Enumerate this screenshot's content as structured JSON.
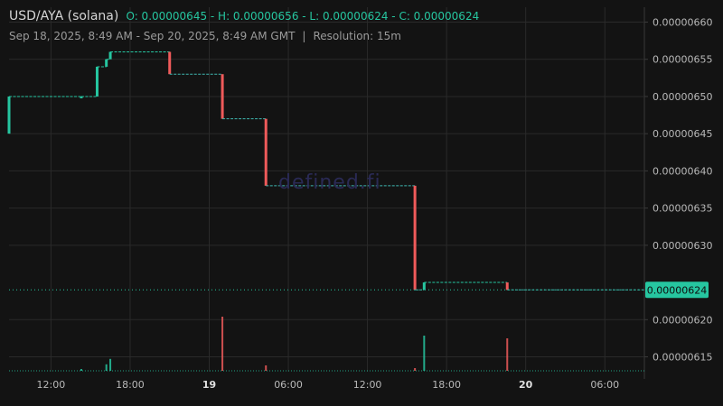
{
  "header": {
    "pair": "USD/AYA (solana)",
    "ohlc": "O: 0.00000645 - H: 0.00000656 - L: 0.00000624 - C: 0.00000624",
    "range": "Sep 18, 2025, 8:49 AM - Sep 20, 2025, 8:49 AM GMT",
    "separator": "|",
    "resolution": "Resolution: 15m"
  },
  "watermark": "defined.fi",
  "colors": {
    "up": "#26c6a0",
    "down": "#ef5a5a",
    "grid": "#2a2a2a",
    "bg": "#131313"
  },
  "chart_data": {
    "type": "line",
    "style": "step",
    "x_unit": "hours since Sep 18 00:00 GMT",
    "ylim": [
      6.13e-06,
      6.62e-06
    ],
    "y_ticks": [
      "0.00000660",
      "0.00000655",
      "0.00000650",
      "0.00000645",
      "0.00000640",
      "0.00000635",
      "0.00000630",
      "0.00000620",
      "0.00000615"
    ],
    "y_tick_values": [
      6.6e-06,
      6.55e-06,
      6.5e-06,
      6.45e-06,
      6.4e-06,
      6.35e-06,
      6.3e-06,
      6.2e-06,
      6.15e-06
    ],
    "x_ticks": [
      {
        "label": "12:00",
        "h": 12,
        "major": false
      },
      {
        "label": "18:00",
        "h": 18,
        "major": false
      },
      {
        "label": "19",
        "h": 24,
        "major": true
      },
      {
        "label": "06:00",
        "h": 30,
        "major": false
      },
      {
        "label": "12:00",
        "h": 36,
        "major": false
      },
      {
        "label": "18:00",
        "h": 42,
        "major": false
      },
      {
        "label": "20",
        "h": 48,
        "major": true
      },
      {
        "label": "06:00",
        "h": 54,
        "major": false
      }
    ],
    "xlim": [
      8.82,
      57.0
    ],
    "steps": [
      {
        "h": 8.82,
        "from": 6.45e-06,
        "to": 6.5e-06
      },
      {
        "h": 14.3,
        "from": 6.5e-06,
        "to": 6.5e-06
      },
      {
        "h": 15.5,
        "from": 6.5e-06,
        "to": 6.54e-06
      },
      {
        "h": 16.2,
        "from": 6.54e-06,
        "to": 6.55e-06
      },
      {
        "h": 16.5,
        "from": 6.55e-06,
        "to": 6.56e-06
      },
      {
        "h": 21.0,
        "from": 6.56e-06,
        "to": 6.53e-06
      },
      {
        "h": 25.0,
        "from": 6.53e-06,
        "to": 6.47e-06
      },
      {
        "h": 28.3,
        "from": 6.47e-06,
        "to": 6.38e-06
      },
      {
        "h": 39.6,
        "from": 6.38e-06,
        "to": 6.24e-06
      },
      {
        "h": 40.3,
        "from": 6.24e-06,
        "to": 6.25e-06
      },
      {
        "h": 46.6,
        "from": 6.25e-06,
        "to": 6.24e-06
      }
    ],
    "end_h": 57.0,
    "last_value": 6.24e-06,
    "last_label": "0.00000624",
    "volume": [
      {
        "h": 14.3,
        "v": 0.03,
        "dir": "up"
      },
      {
        "h": 16.2,
        "v": 0.12,
        "dir": "up"
      },
      {
        "h": 16.5,
        "v": 0.22,
        "dir": "up"
      },
      {
        "h": 25.0,
        "v": 1.0,
        "dir": "down"
      },
      {
        "h": 28.3,
        "v": 0.1,
        "dir": "down"
      },
      {
        "h": 39.6,
        "v": 0.05,
        "dir": "down"
      },
      {
        "h": 40.3,
        "v": 0.65,
        "dir": "up"
      },
      {
        "h": 46.6,
        "v": 0.6,
        "dir": "down"
      }
    ]
  }
}
